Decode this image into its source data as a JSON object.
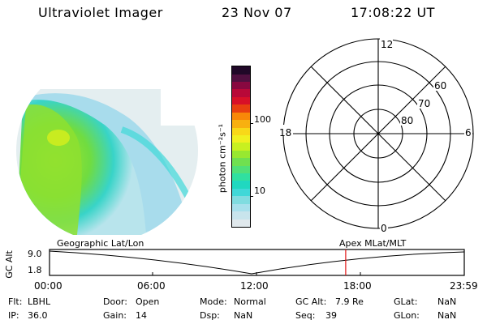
{
  "header": {
    "title": "Ultraviolet Imager",
    "date": "23 Nov 07",
    "time": "17:08:22 UT"
  },
  "colorbar": {
    "unit_label": "photon cm⁻²s⁻¹",
    "tick_100": "100",
    "tick_10": "10",
    "colors": [
      "#e0e8ec",
      "#c8e4ec",
      "#a8e0ec",
      "#80dce0",
      "#40d8d8",
      "#20d8c0",
      "#30e0a0",
      "#50e078",
      "#70e050",
      "#98e830",
      "#c8f020",
      "#f0f020",
      "#f8d818",
      "#f8b010",
      "#f88808",
      "#e84010",
      "#d81028",
      "#b80838",
      "#880840",
      "#501040",
      "#200828"
    ]
  },
  "polar": {
    "label_top": "12",
    "label_bottom": "0",
    "label_left": "18",
    "label_right": "6",
    "ring_60": "60",
    "ring_70": "70",
    "ring_80": "80"
  },
  "timeline": {
    "ylabel": "GC Alt",
    "left_caption": "Geographic Lat/Lon",
    "right_caption": "Apex MLat/MLT",
    "ytick_top": "9.0",
    "ytick_bottom": "1.8",
    "xticks": [
      "00:00",
      "06:00",
      "12:00",
      "18:00",
      "23:59"
    ],
    "marker_time_fraction": 0.7141
  },
  "info": {
    "flt_label": "Flt:",
    "flt_value": "LBHL",
    "ip_label": "IP:",
    "ip_value": "36.0",
    "door_label": "Door:",
    "door_value": "Open",
    "gain_label": "Gain:",
    "gain_value": "14",
    "mode_label": "Mode:",
    "mode_value": "Normal",
    "dsp_label": "Dsp:",
    "dsp_value": "NaN",
    "gcalt_label": "GC Alt:",
    "gcalt_value": "7.9 Re",
    "seq_label": "Seq:",
    "seq_value": "39",
    "glat_label": "GLat:",
    "glat_value": "NaN",
    "glon_label": "GLon:",
    "glon_value": "NaN"
  }
}
